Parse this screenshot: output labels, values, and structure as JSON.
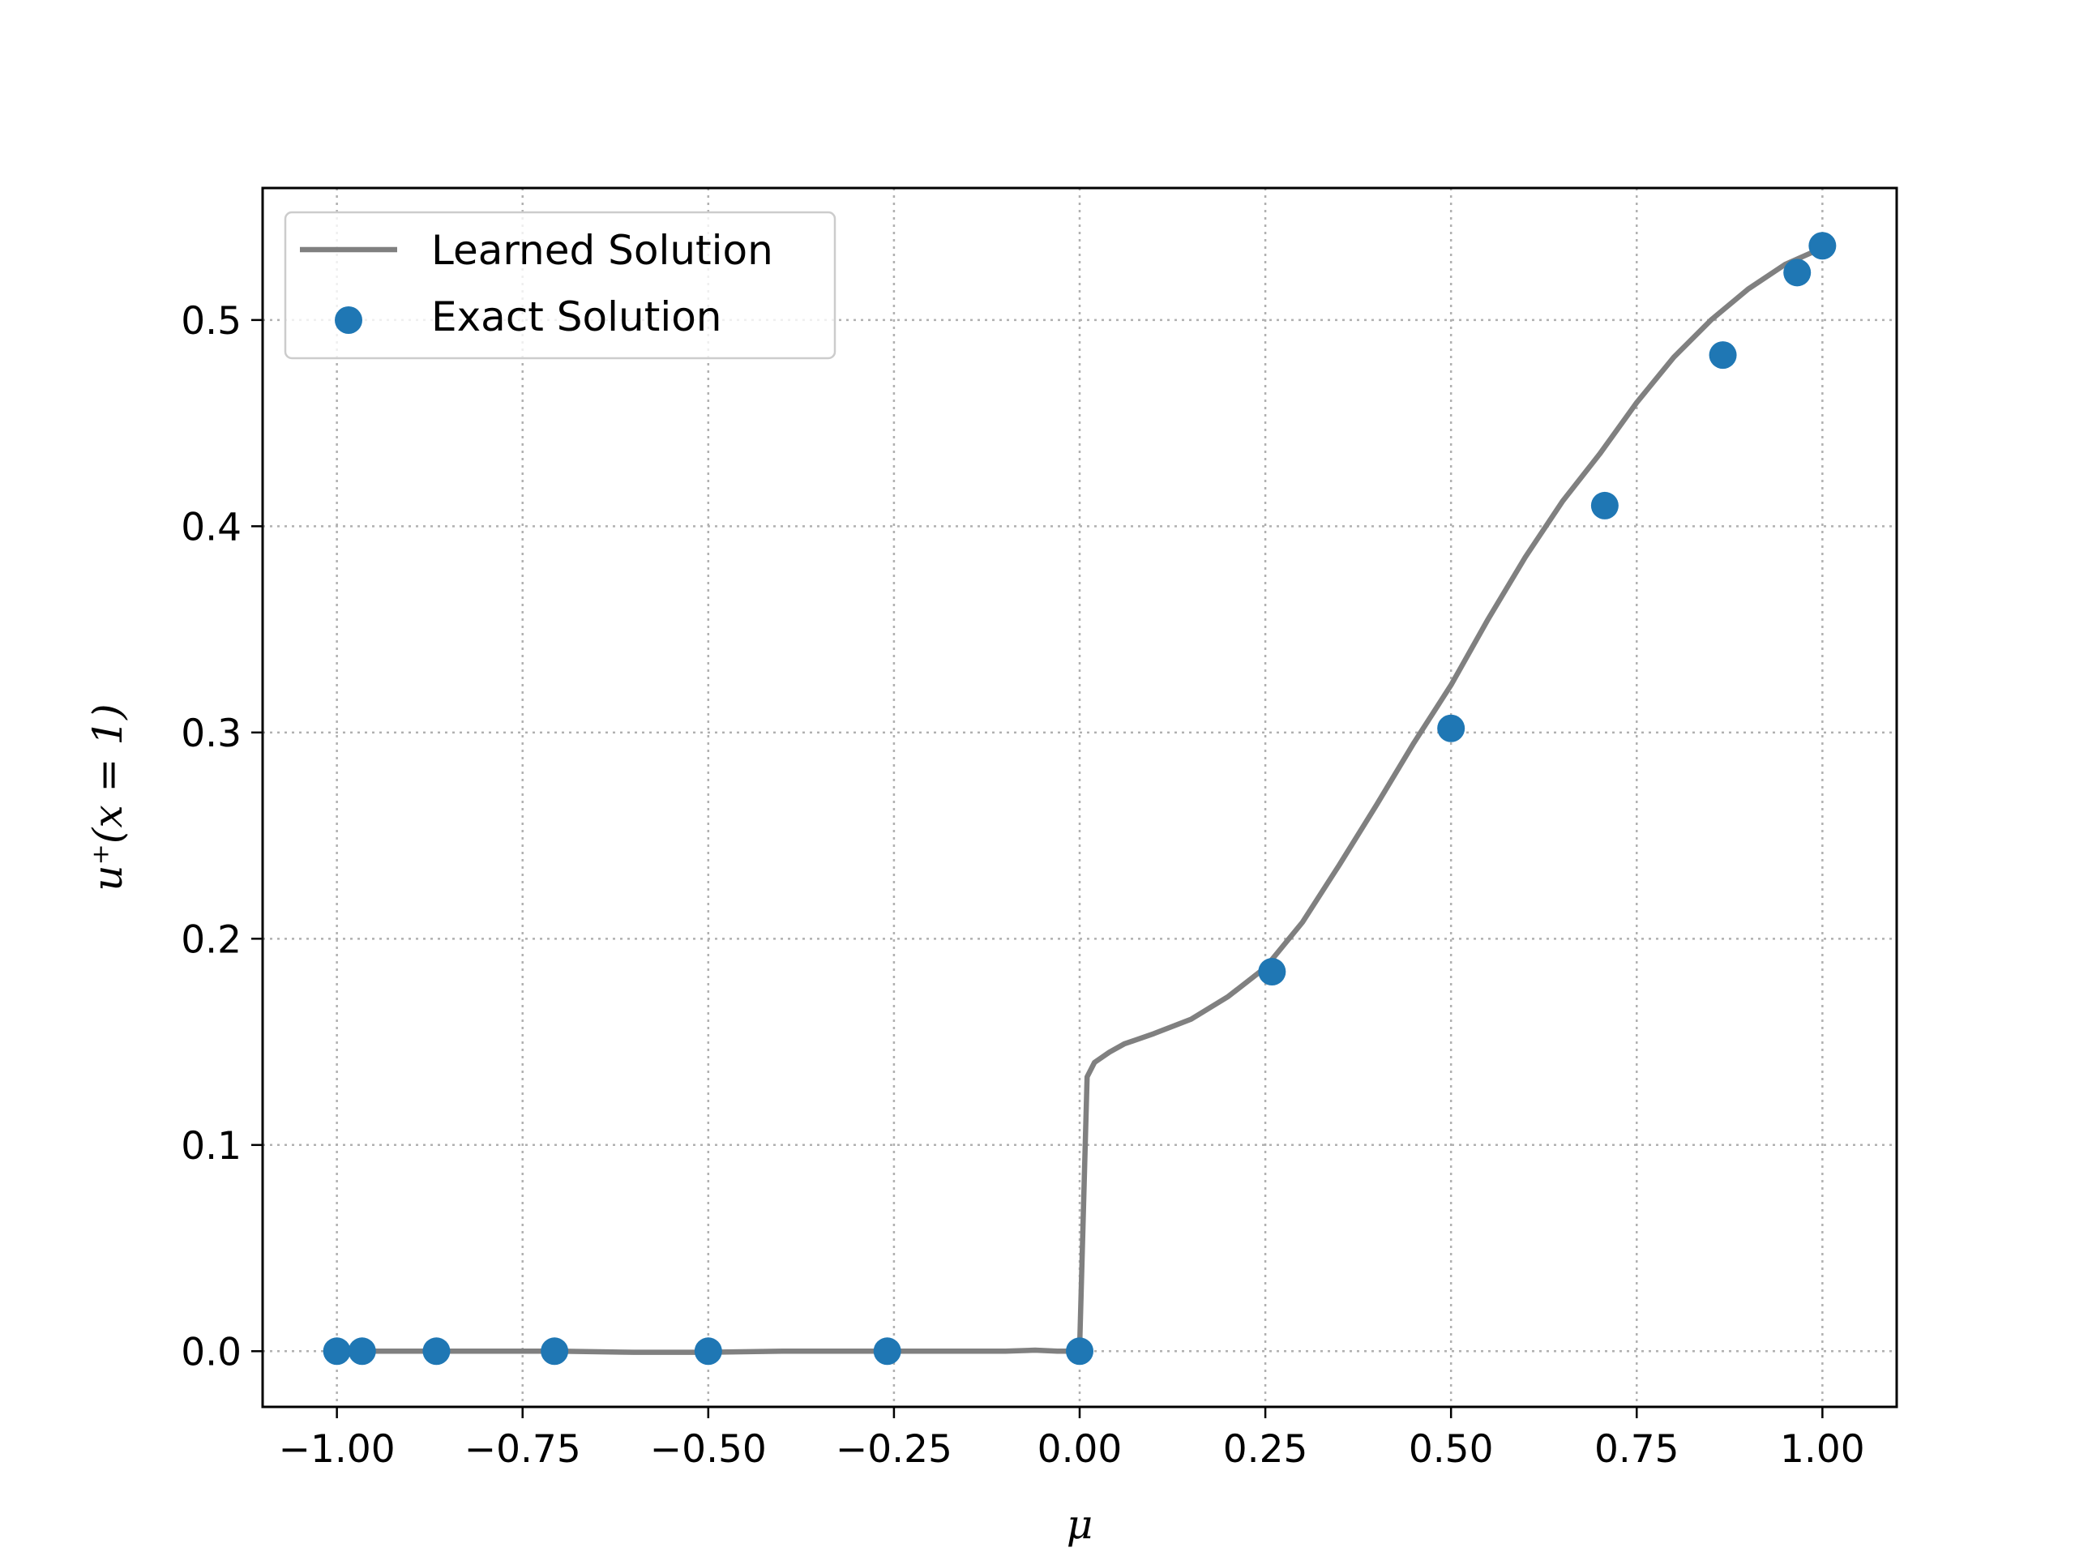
{
  "chart_data": {
    "type": "line",
    "xlabel": "μ",
    "ylabel": "u⁺(x = 1)",
    "xlim": [
      -1.1,
      1.1
    ],
    "ylim": [
      -0.027,
      0.564
    ],
    "grid": true,
    "legend_position": "top-left",
    "xticks": [
      -1.0,
      -0.75,
      -0.5,
      -0.25,
      0.0,
      0.25,
      0.5,
      0.75,
      1.0
    ],
    "xtick_labels": [
      "−1.00",
      "−0.75",
      "−0.50",
      "−0.25",
      "0.00",
      "0.25",
      "0.50",
      "0.75",
      "1.00"
    ],
    "yticks": [
      0.0,
      0.1,
      0.2,
      0.3,
      0.4,
      0.5
    ],
    "ytick_labels": [
      "0.0",
      "0.1",
      "0.2",
      "0.3",
      "0.4",
      "0.5"
    ],
    "series": [
      {
        "name": "Learned Solution",
        "kind": "line",
        "color": "#808080",
        "x": [
          -1.0,
          -0.9,
          -0.8,
          -0.7,
          -0.6,
          -0.5,
          -0.4,
          -0.3,
          -0.2,
          -0.1,
          -0.06,
          -0.03,
          -0.01,
          0.0,
          0.01,
          0.02,
          0.04,
          0.06,
          0.1,
          0.15,
          0.2,
          0.25,
          0.3,
          0.35,
          0.4,
          0.45,
          0.5,
          0.55,
          0.6,
          0.65,
          0.7,
          0.75,
          0.8,
          0.85,
          0.9,
          0.95,
          1.0
        ],
        "y": [
          0.0,
          0.0,
          0.0,
          0.0,
          -0.0005,
          -0.0005,
          0.0,
          0.0,
          0.0,
          0.0,
          0.0005,
          0.0,
          0.0,
          0.002,
          0.133,
          0.14,
          0.145,
          0.149,
          0.154,
          0.161,
          0.172,
          0.186,
          0.208,
          0.236,
          0.265,
          0.295,
          0.323,
          0.355,
          0.385,
          0.412,
          0.435,
          0.46,
          0.482,
          0.5,
          0.515,
          0.527,
          0.535
        ]
      },
      {
        "name": "Exact Solution",
        "kind": "scatter",
        "color": "#1f77b4",
        "x": [
          -1.0,
          -0.966,
          -0.866,
          -0.707,
          -0.5,
          -0.259,
          0.0,
          0.259,
          0.5,
          0.707,
          0.866,
          0.966,
          1.0
        ],
        "y": [
          0.0,
          0.0,
          0.0,
          0.0,
          0.0,
          0.0,
          0.0,
          0.184,
          0.302,
          0.41,
          0.483,
          0.523,
          0.536
        ]
      }
    ]
  }
}
